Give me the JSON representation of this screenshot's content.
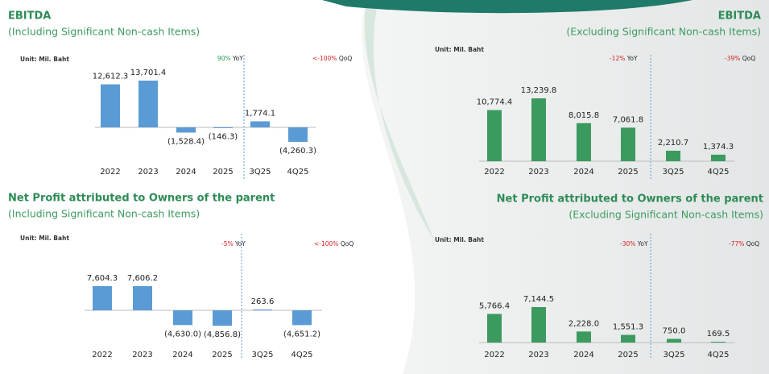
{
  "chart_data": [
    {
      "type": "bar",
      "title": "EBITDA",
      "subtitle": "(Including Significant Non-cash Items)",
      "unit": "Unit: Mil. Baht",
      "categories": [
        "2022",
        "2023",
        "2024",
        "2025",
        "3Q25",
        "4Q25"
      ],
      "values": [
        12612.3,
        13701.4,
        -1528.4,
        -146.3,
        1774.1,
        -4260.3
      ],
      "value_labels": [
        "12,612.3",
        "13,701.4",
        "(1,528.4)",
        "(146.3)",
        "1,774.1",
        "(4,260.3)"
      ],
      "color": "#5b9bd5",
      "annotations": [
        {
          "text": "90%",
          "suffix": "YoY",
          "color": "#2e9a55"
        },
        {
          "text": "<-100%",
          "suffix": "QoQ",
          "color": "#d42020"
        }
      ]
    },
    {
      "type": "bar",
      "title": "EBITDA",
      "subtitle": "(Excluding Significant Non-cash Items)",
      "unit": "Unit: Mil. Baht",
      "categories": [
        "2022",
        "2023",
        "2024",
        "2025",
        "3Q25",
        "4Q25"
      ],
      "values": [
        10774.4,
        13239.8,
        8015.8,
        7061.8,
        2210.7,
        1374.3
      ],
      "value_labels": [
        "10,774.4",
        "13,239.8",
        "8,015.8",
        "7,061.8",
        "2,210.7",
        "1,374.3"
      ],
      "color": "#3c9a5f",
      "annotations": [
        {
          "text": "-12%",
          "suffix": "YoY",
          "color": "#d42020"
        },
        {
          "text": "-39%",
          "suffix": "QoQ",
          "color": "#d42020"
        }
      ]
    },
    {
      "type": "bar",
      "title": "Net Profit attributed to Owners of the parent",
      "subtitle": "(Including Significant Non-cash Items)",
      "unit": "Unit: Mil. Baht",
      "categories": [
        "2022",
        "2023",
        "2024",
        "2025",
        "3Q25",
        "4Q25"
      ],
      "values": [
        7604.3,
        7606.2,
        -4630.0,
        -4856.8,
        263.6,
        -4651.2
      ],
      "value_labels": [
        "7,604.3",
        "7,606.2",
        "(4,630.0)",
        "(4,856.8)",
        "263.6",
        "(4,651.2)"
      ],
      "color": "#5b9bd5",
      "annotations": [
        {
          "text": "-5%",
          "suffix": "YoY",
          "color": "#d42020"
        },
        {
          "text": "<-100%",
          "suffix": "QoQ",
          "color": "#d42020"
        }
      ]
    },
    {
      "type": "bar",
      "title": "Net Profit attributed to Owners of the parent",
      "subtitle": "(Excluding Significant Non-cash Items)",
      "unit": "Unit: Mil. Baht",
      "categories": [
        "2022",
        "2023",
        "2024",
        "2025",
        "3Q25",
        "4Q25"
      ],
      "values": [
        5766.4,
        7144.5,
        2228.0,
        1551.3,
        750.0,
        169.5
      ],
      "value_labels": [
        "5,766.4",
        "7,144.5",
        "2,228.0",
        "1,551.3",
        "750.0",
        "169.5"
      ],
      "color": "#3c9a5f",
      "annotations": [
        {
          "text": "-30%",
          "suffix": "YoY",
          "color": "#d42020"
        },
        {
          "text": "-77%",
          "suffix": "QoQ",
          "color": "#d42020"
        }
      ]
    }
  ]
}
